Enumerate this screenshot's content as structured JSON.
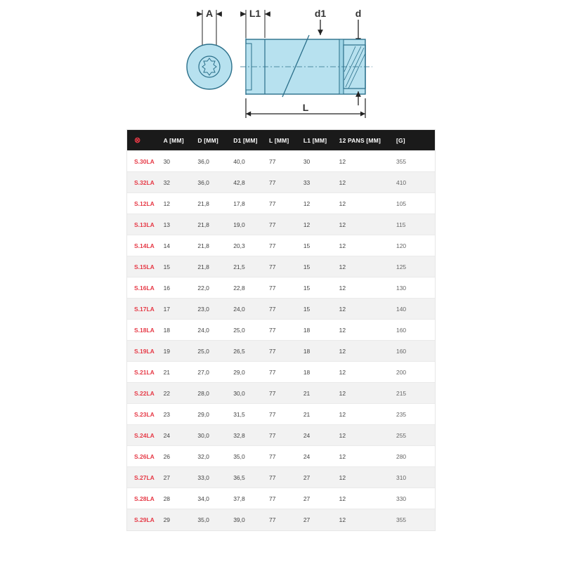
{
  "diagram": {
    "labels": {
      "A": "A",
      "L1": "L1",
      "d1": "d1",
      "d": "d",
      "L": "L"
    },
    "colors": {
      "fill": "#b7e1ef",
      "stroke": "#2a6f8a",
      "text": "#333333",
      "arrow": "#222222"
    }
  },
  "table": {
    "header_icon": "⊗",
    "columns": [
      "A [MM]",
      "D [MM]",
      "D1 [MM]",
      "L [MM]",
      "L1 [MM]",
      "12 PANS [MM]",
      "[G]"
    ],
    "rows": [
      {
        "code": "S.30LA",
        "a": "30",
        "d": "36,0",
        "d1": "40,0",
        "l": "77",
        "l1": "30",
        "pans": "12",
        "g": "355"
      },
      {
        "code": "S.32LA",
        "a": "32",
        "d": "36,0",
        "d1": "42,8",
        "l": "77",
        "l1": "33",
        "pans": "12",
        "g": "410"
      },
      {
        "code": "S.12LA",
        "a": "12",
        "d": "21,8",
        "d1": "17,8",
        "l": "77",
        "l1": "12",
        "pans": "12",
        "g": "105"
      },
      {
        "code": "S.13LA",
        "a": "13",
        "d": "21,8",
        "d1": "19,0",
        "l": "77",
        "l1": "12",
        "pans": "12",
        "g": "115"
      },
      {
        "code": "S.14LA",
        "a": "14",
        "d": "21,8",
        "d1": "20,3",
        "l": "77",
        "l1": "15",
        "pans": "12",
        "g": "120"
      },
      {
        "code": "S.15LA",
        "a": "15",
        "d": "21,8",
        "d1": "21,5",
        "l": "77",
        "l1": "15",
        "pans": "12",
        "g": "125"
      },
      {
        "code": "S.16LA",
        "a": "16",
        "d": "22,0",
        "d1": "22,8",
        "l": "77",
        "l1": "15",
        "pans": "12",
        "g": "130"
      },
      {
        "code": "S.17LA",
        "a": "17",
        "d": "23,0",
        "d1": "24,0",
        "l": "77",
        "l1": "15",
        "pans": "12",
        "g": "140"
      },
      {
        "code": "S.18LA",
        "a": "18",
        "d": "24,0",
        "d1": "25,0",
        "l": "77",
        "l1": "18",
        "pans": "12",
        "g": "160"
      },
      {
        "code": "S.19LA",
        "a": "19",
        "d": "25,0",
        "d1": "26,5",
        "l": "77",
        "l1": "18",
        "pans": "12",
        "g": "160"
      },
      {
        "code": "S.21LA",
        "a": "21",
        "d": "27,0",
        "d1": "29,0",
        "l": "77",
        "l1": "18",
        "pans": "12",
        "g": "200"
      },
      {
        "code": "S.22LA",
        "a": "22",
        "d": "28,0",
        "d1": "30,0",
        "l": "77",
        "l1": "21",
        "pans": "12",
        "g": "215"
      },
      {
        "code": "S.23LA",
        "a": "23",
        "d": "29,0",
        "d1": "31,5",
        "l": "77",
        "l1": "21",
        "pans": "12",
        "g": "235"
      },
      {
        "code": "S.24LA",
        "a": "24",
        "d": "30,0",
        "d1": "32,8",
        "l": "77",
        "l1": "24",
        "pans": "12",
        "g": "255"
      },
      {
        "code": "S.26LA",
        "a": "26",
        "d": "32,0",
        "d1": "35,0",
        "l": "77",
        "l1": "24",
        "pans": "12",
        "g": "280"
      },
      {
        "code": "S.27LA",
        "a": "27",
        "d": "33,0",
        "d1": "36,5",
        "l": "77",
        "l1": "27",
        "pans": "12",
        "g": "310"
      },
      {
        "code": "S.28LA",
        "a": "28",
        "d": "34,0",
        "d1": "37,8",
        "l": "77",
        "l1": "27",
        "pans": "12",
        "g": "330"
      },
      {
        "code": "S.29LA",
        "a": "29",
        "d": "35,0",
        "d1": "39,0",
        "l": "77",
        "l1": "27",
        "pans": "12",
        "g": "355"
      }
    ],
    "row_bg_even": "#ffffff",
    "row_bg_odd": "#f2f2f2",
    "header_bg": "#1a1a1a",
    "header_fg": "#ffffff",
    "code_color": "#e63946"
  }
}
